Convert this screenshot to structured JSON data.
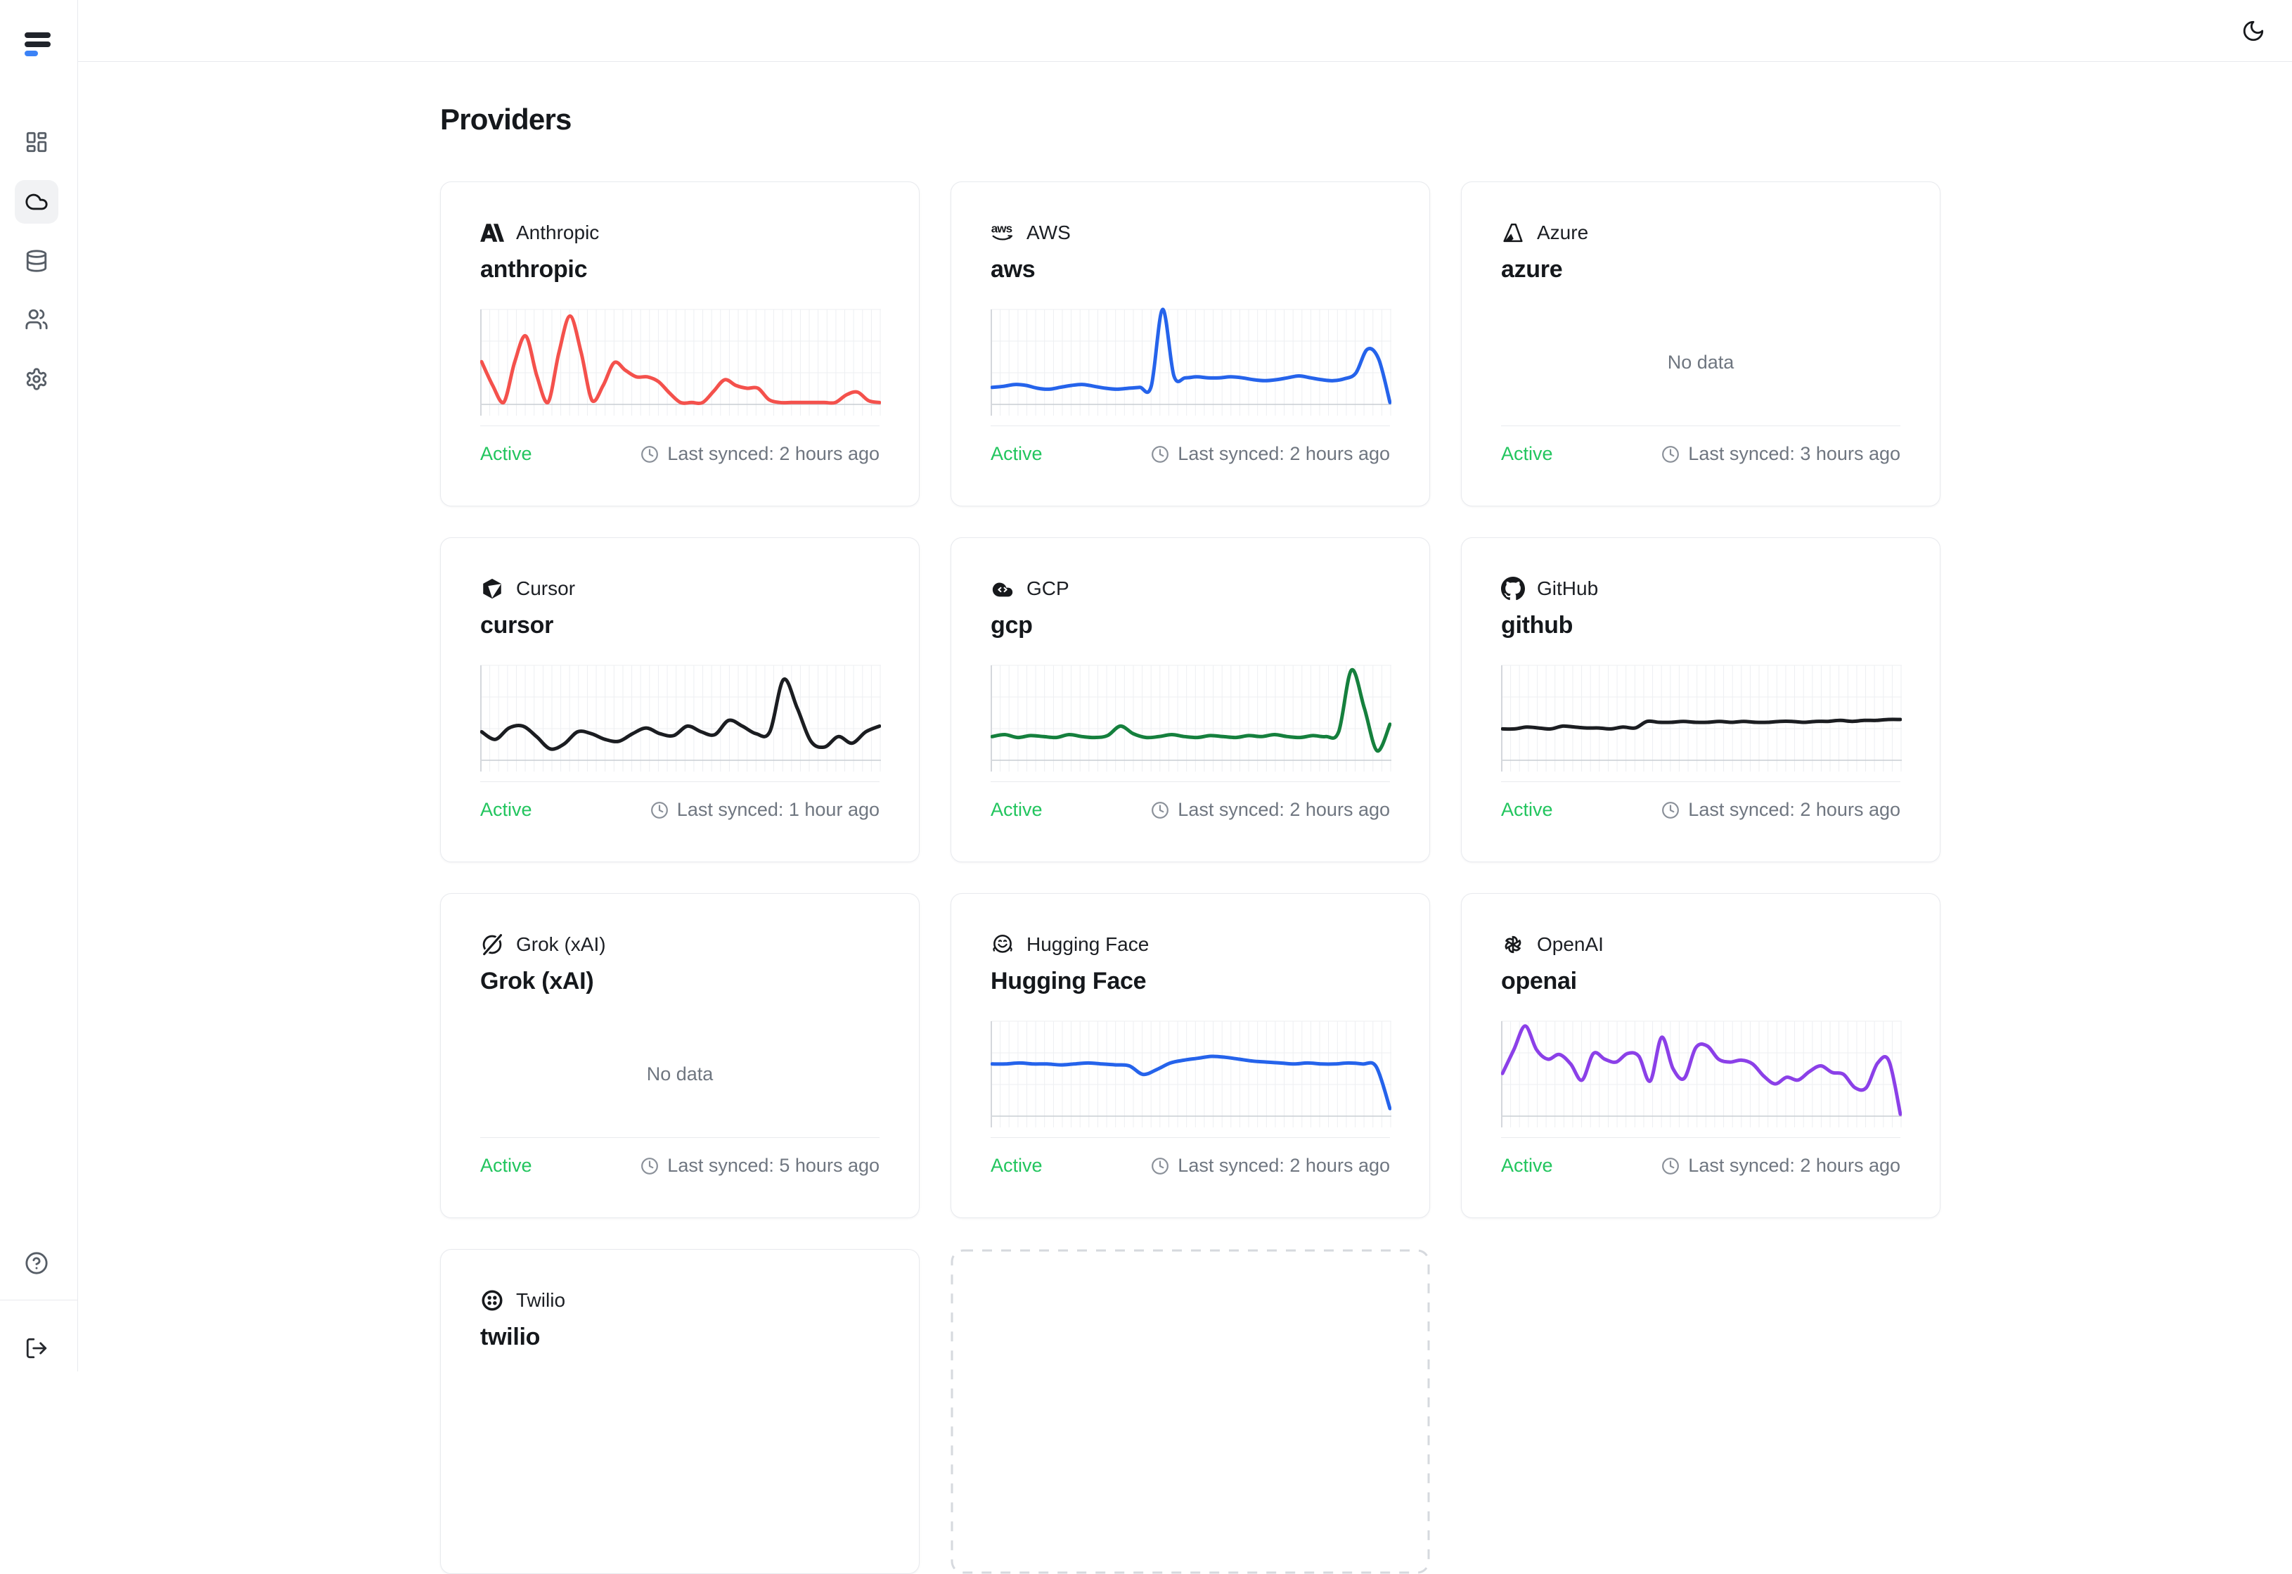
{
  "page": {
    "title": "Providers"
  },
  "sidebar": {
    "logo": "app-logo-bars",
    "nav": [
      {
        "icon": "dashboard-icon",
        "active": false
      },
      {
        "icon": "cloud-icon",
        "active": true
      },
      {
        "icon": "database-icon",
        "active": false
      },
      {
        "icon": "users-icon",
        "active": false
      },
      {
        "icon": "settings-icon",
        "active": false
      }
    ],
    "footer_icons": [
      "help-icon",
      "logout-icon"
    ]
  },
  "header": {
    "icons": [
      "moon-icon"
    ]
  },
  "colors": {
    "status_green": "#22c55e",
    "muted_text": "#6f7680",
    "card_border": "#e8eaee",
    "grid_line": "#edeff2",
    "baseline": "#c9cdd3",
    "axis": "#d4d7dc",
    "accent_blue": "#3b82f6"
  },
  "cards": [
    {
      "label": "Anthropic",
      "name": "anthropic",
      "icon": "anthropic-logo",
      "status": "Active",
      "last_synced": "Last synced: 2 hours ago",
      "line_color": "#f4514c",
      "values": [
        0.45,
        0.2,
        0.02,
        0.45,
        0.72,
        0.3,
        0.02,
        0.55,
        0.93,
        0.55,
        0.04,
        0.2,
        0.44,
        0.36,
        0.29,
        0.29,
        0.24,
        0.12,
        0.02,
        0.02,
        0.02,
        0.14,
        0.26,
        0.2,
        0.17,
        0.17,
        0.05,
        0.02,
        0.02,
        0.02,
        0.02,
        0.02,
        0.02,
        0.1,
        0.13,
        0.04,
        0.02
      ]
    },
    {
      "label": "AWS",
      "name": "aws",
      "icon": "aws-logo",
      "status": "Active",
      "last_synced": "Last synced: 2 hours ago",
      "line_color": "#2563eb",
      "values": [
        0.18,
        0.19,
        0.21,
        0.2,
        0.17,
        0.16,
        0.18,
        0.2,
        0.21,
        0.19,
        0.17,
        0.16,
        0.17,
        0.18,
        0.19,
        1.0,
        0.3,
        0.28,
        0.29,
        0.28,
        0.28,
        0.29,
        0.28,
        0.26,
        0.25,
        0.26,
        0.28,
        0.3,
        0.28,
        0.26,
        0.25,
        0.27,
        0.33,
        0.58,
        0.48,
        0.02
      ]
    },
    {
      "label": "Azure",
      "name": "azure",
      "icon": "azure-logo",
      "status": "Active",
      "last_synced": "Last synced: 3 hours ago",
      "no_data": "No data"
    },
    {
      "label": "Cursor",
      "name": "cursor",
      "icon": "cursor-logo",
      "status": "Active",
      "last_synced": "Last synced: 1 hour ago",
      "line_color": "#1b1d21",
      "values": [
        0.3,
        0.22,
        0.34,
        0.36,
        0.25,
        0.12,
        0.17,
        0.3,
        0.28,
        0.22,
        0.2,
        0.28,
        0.34,
        0.28,
        0.26,
        0.36,
        0.3,
        0.27,
        0.42,
        0.36,
        0.28,
        0.3,
        0.85,
        0.55,
        0.2,
        0.14,
        0.25,
        0.18,
        0.3,
        0.36
      ]
    },
    {
      "label": "GCP",
      "name": "gcp",
      "icon": "gcp-logo",
      "status": "Active",
      "last_synced": "Last synced: 2 hours ago",
      "line_color": "#15803d",
      "values": [
        0.25,
        0.27,
        0.24,
        0.26,
        0.25,
        0.24,
        0.27,
        0.25,
        0.24,
        0.26,
        0.36,
        0.28,
        0.24,
        0.25,
        0.27,
        0.25,
        0.24,
        0.26,
        0.25,
        0.24,
        0.26,
        0.25,
        0.27,
        0.25,
        0.24,
        0.26,
        0.25,
        0.3,
        0.95,
        0.55,
        0.1,
        0.38
      ]
    },
    {
      "label": "GitHub",
      "name": "github",
      "icon": "github-logo",
      "status": "Active",
      "last_synced": "Last synced: 2 hours ago",
      "line_color": "#1b1d21",
      "values": [
        0.33,
        0.33,
        0.35,
        0.34,
        0.33,
        0.36,
        0.35,
        0.34,
        0.34,
        0.33,
        0.35,
        0.34,
        0.41,
        0.4,
        0.4,
        0.41,
        0.4,
        0.4,
        0.41,
        0.4,
        0.41,
        0.4,
        0.4,
        0.41,
        0.41,
        0.4,
        0.41,
        0.41,
        0.42,
        0.41,
        0.42,
        0.42,
        0.43,
        0.43
      ]
    },
    {
      "label": "Grok (xAI)",
      "name": "Grok (xAI)",
      "icon": "grok-logo",
      "status": "Active",
      "last_synced": "Last synced: 5 hours ago",
      "no_data": "No data"
    },
    {
      "label": "Hugging Face",
      "name": "Hugging Face",
      "icon": "huggingface-logo",
      "status": "Active",
      "last_synced": "Last synced: 2 hours ago",
      "line_color": "#2563eb",
      "values": [
        0.55,
        0.55,
        0.56,
        0.55,
        0.55,
        0.54,
        0.55,
        0.56,
        0.55,
        0.54,
        0.53,
        0.44,
        0.49,
        0.56,
        0.59,
        0.61,
        0.63,
        0.62,
        0.6,
        0.58,
        0.57,
        0.56,
        0.55,
        0.56,
        0.55,
        0.55,
        0.56,
        0.55,
        0.52,
        0.08
      ]
    },
    {
      "label": "OpenAI",
      "name": "openai",
      "icon": "openai-logo",
      "status": "Active",
      "last_synced": "Last synced: 2 hours ago",
      "line_color": "#8b40e8",
      "values": [
        0.45,
        0.7,
        0.95,
        0.7,
        0.6,
        0.65,
        0.55,
        0.38,
        0.66,
        0.6,
        0.57,
        0.66,
        0.63,
        0.37,
        0.83,
        0.5,
        0.4,
        0.72,
        0.74,
        0.6,
        0.57,
        0.59,
        0.55,
        0.42,
        0.34,
        0.41,
        0.38,
        0.47,
        0.53,
        0.46,
        0.44,
        0.3,
        0.3,
        0.56,
        0.58,
        0.02
      ]
    },
    {
      "label": "Twilio",
      "name": "twilio",
      "icon": "twilio-logo"
    }
  ]
}
